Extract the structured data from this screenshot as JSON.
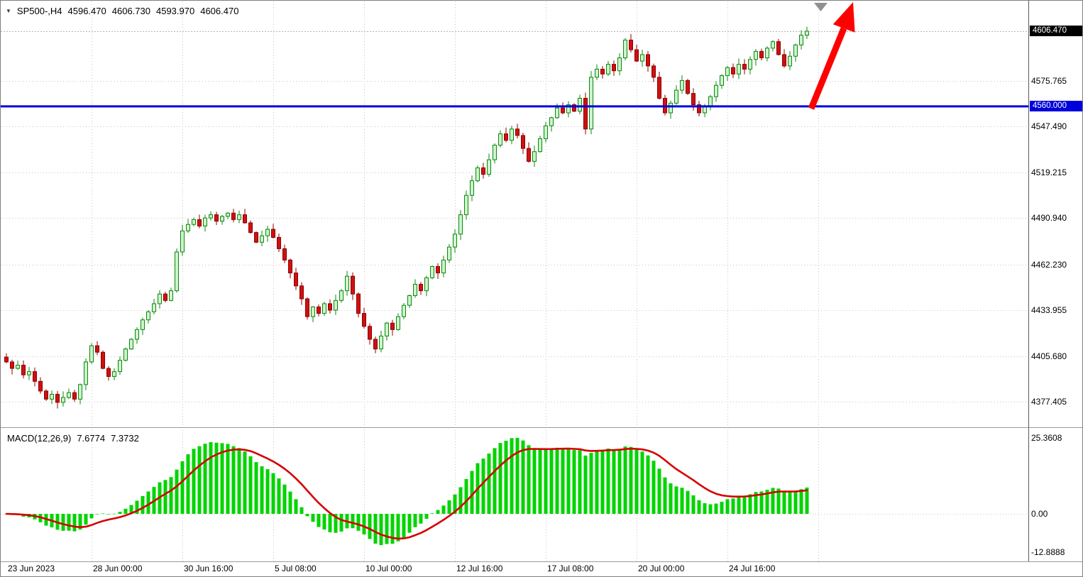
{
  "icons": {
    "symbol_dropdown": "▼"
  },
  "header": {
    "title": "SP500-,H4",
    "open": "4596.470",
    "high": "4606.730",
    "low": "4593.970",
    "close": "4606.470"
  },
  "macd_label": {
    "name": "MACD(12,26,9)",
    "main": "7.6774",
    "signal": "7.3732"
  },
  "chart_data": {
    "type": "candlestick",
    "symbol": "SP500-",
    "timeframe": "H4",
    "ohlc_current": {
      "open": 4596.47,
      "high": 4606.73,
      "low": 4593.97,
      "close": 4606.47
    },
    "first_open": 4405,
    "closes": [
      4402,
      4398,
      4400,
      4394,
      4396,
      4390,
      4384,
      4379,
      4382,
      4377,
      4380,
      4383,
      4379,
      4388,
      4402,
      4412,
      4408,
      4398,
      4393,
      4396,
      4403,
      4410,
      4416,
      4422,
      4428,
      4433,
      4438,
      4444,
      4440,
      4446,
      4470,
      4483,
      4487,
      4490,
      4486,
      4491,
      4493,
      4489,
      4492,
      4494,
      4490,
      4493,
      4488,
      4482,
      4476,
      4480,
      4484,
      4479,
      4472,
      4465,
      4457,
      4449,
      4441,
      4430,
      4436,
      4432,
      4438,
      4434,
      4440,
      4446,
      4455,
      4444,
      4432,
      4424,
      4416,
      4410,
      4418,
      4426,
      4422,
      4430,
      4437,
      4443,
      4450,
      4446,
      4454,
      4461,
      4457,
      4465,
      4473,
      4481,
      4493,
      4505,
      4514,
      4522,
      4518,
      4527,
      4536,
      4543,
      4539,
      4546,
      4542,
      4534,
      4526,
      4532,
      4540,
      4548,
      4553,
      4559,
      4556,
      4561,
      4557,
      4565,
      4546,
      4578,
      4583,
      4580,
      4586,
      4582,
      4590,
      4601,
      4595,
      4588,
      4592,
      4585,
      4578,
      4565,
      4556,
      4562,
      4570,
      4576,
      4568,
      4561,
      4556,
      4560,
      4566,
      4573,
      4579,
      4584,
      4580,
      4586,
      4583,
      4589,
      4594,
      4590,
      4596,
      4600,
      4592,
      4585,
      4591,
      4598,
      4604,
      4606.47
    ],
    "price_axis": {
      "labels": [
        {
          "text": "4575.765",
          "value": 4575.765
        },
        {
          "text": "4547.490",
          "value": 4547.49
        },
        {
          "text": "4519.215",
          "value": 4519.215
        },
        {
          "text": "4490.940",
          "value": 4490.94
        },
        {
          "text": "4462.230",
          "value": 4462.23
        },
        {
          "text": "4433.955",
          "value": 4433.955
        },
        {
          "text": "4405.680",
          "value": 4405.68
        },
        {
          "text": "4377.405",
          "value": 4377.405
        }
      ],
      "bid": {
        "text": "4606.470",
        "value": 4606.47
      },
      "level": {
        "text": "4560.000",
        "value": 4560.0
      }
    },
    "macd_axis": {
      "labels": [
        {
          "text": "25.3608",
          "value": 25.3608
        },
        {
          "text": "0.00",
          "value": 0
        },
        {
          "text": "-12.8888",
          "value": -12.8888
        }
      ]
    },
    "indicator": {
      "name": "MACD",
      "params": [
        12,
        26,
        9
      ],
      "main": 7.6774,
      "signal": 7.3732
    },
    "date_axis": {
      "labels": [
        {
          "text": "23 Jun 2023",
          "i": 0
        },
        {
          "text": "28 Jun 00:00",
          "i": 15
        },
        {
          "text": "30 Jun 16:00",
          "i": 31
        },
        {
          "text": "5 Jul 08:00",
          "i": 47
        },
        {
          "text": "10 Jul 00:00",
          "i": 63
        },
        {
          "text": "12 Jul 16:00",
          "i": 79
        },
        {
          "text": "17 Jul 08:00",
          "i": 95
        },
        {
          "text": "20 Jul 00:00",
          "i": 111
        },
        {
          "text": "24 Jul 16:00",
          "i": 127
        }
      ],
      "gridline_indices": [
        15,
        31,
        47,
        63,
        79,
        95,
        111,
        127,
        143
      ]
    },
    "annotations": {
      "trend_arrow": {
        "color": "#ff0000",
        "direction": "up"
      },
      "level_line": {
        "value": 4560.0,
        "color": "#0000dc"
      }
    },
    "colors": {
      "up_fill": "#ccf5cc",
      "up_border": "#0d870d",
      "down_fill": "#d01010",
      "down_border": "#8d0000",
      "histogram": "#00d400",
      "signal": "#d40000",
      "level_line": "#0000dc",
      "bid_badge_bg": "#000000",
      "grid": "#c6c6c6",
      "background": "#ffffff"
    }
  }
}
